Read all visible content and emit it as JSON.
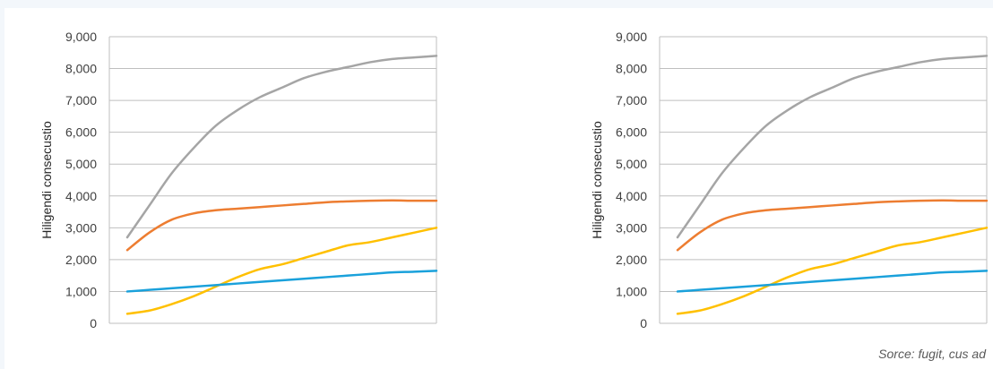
{
  "source_note": "Sorce: fugit, cus ad",
  "colors": {
    "gray": "#a5a5a5",
    "orange": "#ed7d31",
    "yellow": "#ffc000",
    "blue": "#1aa1db",
    "grid": "#bfbfbf",
    "axis": "#bfbfbf"
  },
  "chart_data": [
    {
      "type": "line",
      "ylabel": "Hiligendi consecustio",
      "ylim": [
        0,
        9000
      ],
      "yticks": [
        "0",
        "1,000",
        "2,000",
        "3,000",
        "4,000",
        "5,000",
        "6,000",
        "7,000",
        "8,000",
        "9,000"
      ],
      "grid": true,
      "x": [
        1,
        2,
        3,
        4,
        5,
        6,
        7,
        8,
        9,
        10,
        11,
        12,
        13,
        14,
        15
      ],
      "series": [
        {
          "color": "#a5a5a5",
          "values": [
            2700,
            3700,
            4700,
            5500,
            6200,
            6700,
            7100,
            7400,
            7700,
            7900,
            8050,
            8200,
            8300,
            8350,
            8400
          ]
        },
        {
          "color": "#ed7d31",
          "values": [
            2300,
            2850,
            3250,
            3450,
            3550,
            3600,
            3650,
            3700,
            3750,
            3800,
            3830,
            3850,
            3860,
            3850,
            3850
          ]
        },
        {
          "color": "#ffc000",
          "values": [
            300,
            400,
            600,
            850,
            1150,
            1450,
            1700,
            1850,
            2050,
            2250,
            2450,
            2550,
            2700,
            2850,
            3000
          ]
        },
        {
          "color": "#1aa1db",
          "values": [
            1000,
            1050,
            1100,
            1150,
            1200,
            1250,
            1300,
            1350,
            1400,
            1450,
            1500,
            1550,
            1600,
            1620,
            1650
          ]
        }
      ]
    },
    {
      "type": "line",
      "ylabel": "Hiligendi consecustio",
      "ylim": [
        0,
        9000
      ],
      "yticks": [
        "0",
        "1,000",
        "2,000",
        "3,000",
        "4,000",
        "5,000",
        "6,000",
        "7,000",
        "8,000",
        "9,000"
      ],
      "grid": true,
      "x": [
        1,
        2,
        3,
        4,
        5,
        6,
        7,
        8,
        9,
        10,
        11,
        12,
        13,
        14,
        15
      ],
      "series": [
        {
          "color": "#a5a5a5",
          "values": [
            2700,
            3700,
            4700,
            5500,
            6200,
            6700,
            7100,
            7400,
            7700,
            7900,
            8050,
            8200,
            8300,
            8350,
            8400
          ]
        },
        {
          "color": "#ed7d31",
          "values": [
            2300,
            2850,
            3250,
            3450,
            3550,
            3600,
            3650,
            3700,
            3750,
            3800,
            3830,
            3850,
            3860,
            3850,
            3850
          ]
        },
        {
          "color": "#ffc000",
          "values": [
            300,
            400,
            600,
            850,
            1150,
            1450,
            1700,
            1850,
            2050,
            2250,
            2450,
            2550,
            2700,
            2850,
            3000
          ]
        },
        {
          "color": "#1aa1db",
          "values": [
            1000,
            1050,
            1100,
            1150,
            1200,
            1250,
            1300,
            1350,
            1400,
            1450,
            1500,
            1550,
            1600,
            1620,
            1650
          ]
        }
      ]
    }
  ]
}
